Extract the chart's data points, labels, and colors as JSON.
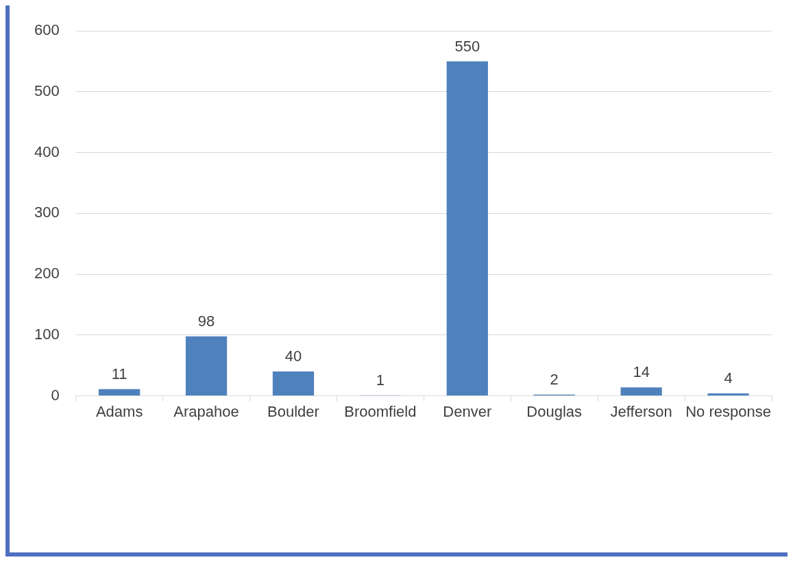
{
  "chart_data": {
    "type": "bar",
    "categories": [
      "Adams",
      "Arapahoe",
      "Boulder",
      "Broomfield",
      "Denver",
      "Douglas",
      "Jefferson",
      "No response"
    ],
    "values": [
      11,
      98,
      40,
      1,
      550,
      2,
      14,
      4
    ],
    "color": "#4f81bd",
    "ylim": [
      0,
      600
    ],
    "yticks": [
      0,
      100,
      200,
      300,
      400,
      500,
      600
    ],
    "grid": "y",
    "data_labels": true,
    "legend": false
  }
}
